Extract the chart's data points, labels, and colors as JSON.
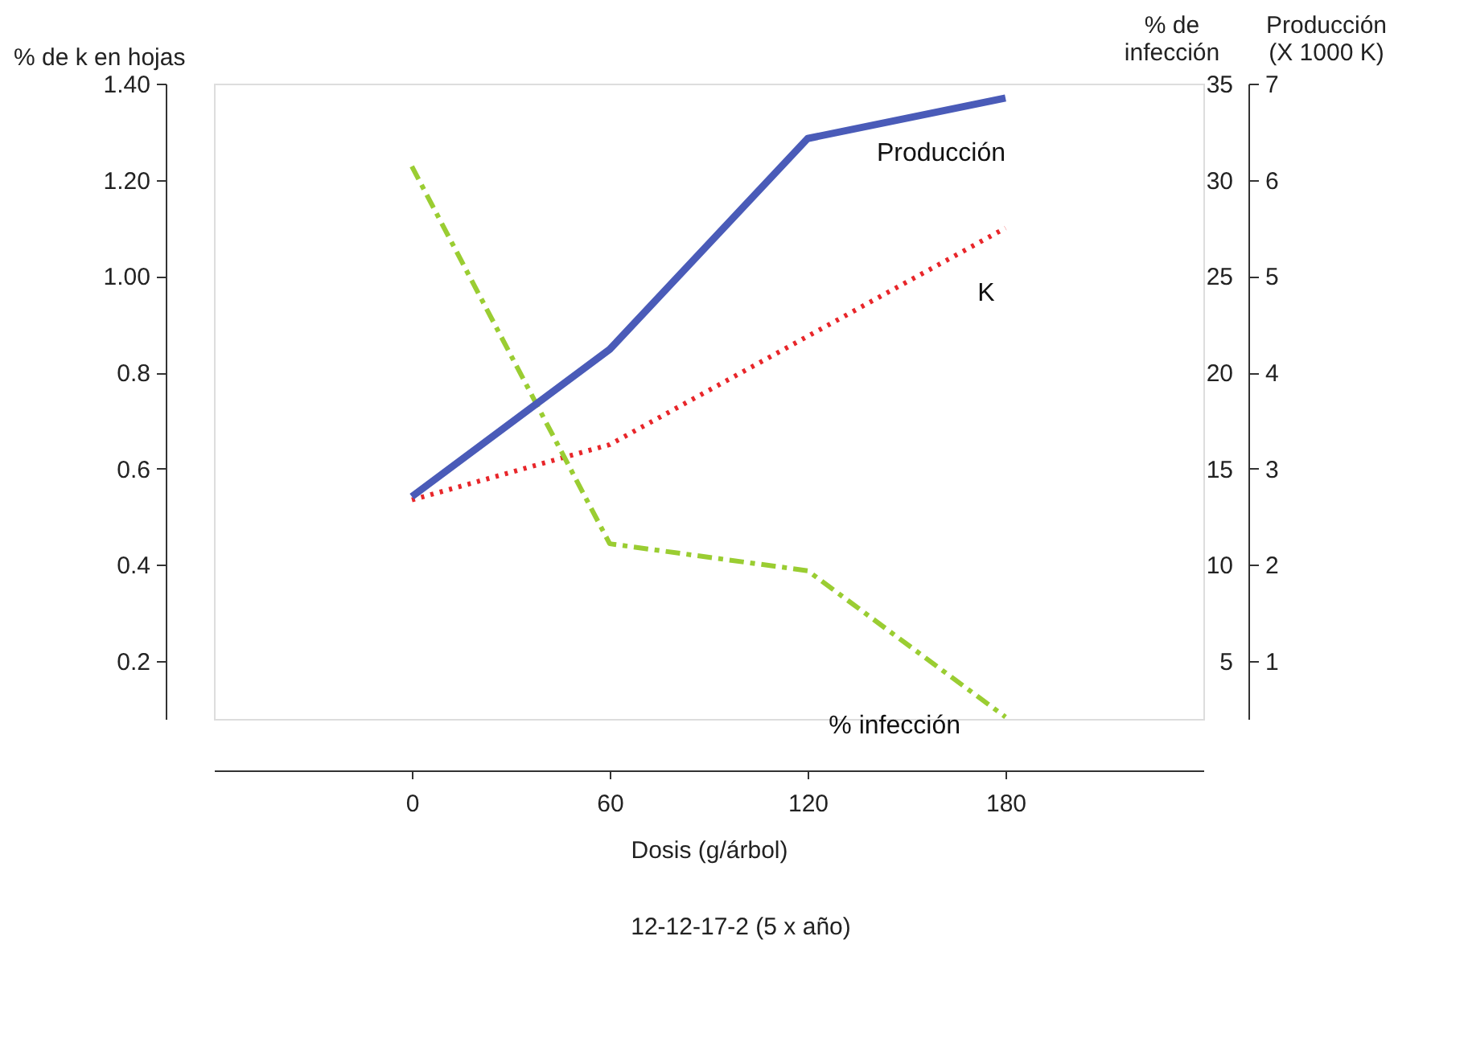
{
  "chart_data": {
    "type": "line",
    "xlabel": "Dosis (g/árbol)",
    "ylabel": "% de k en hojas",
    "y2label": "% de\ninfección",
    "y3label": "Producción\n(X 1000 K)",
    "x": [
      0,
      60,
      120,
      180
    ],
    "xlim": [
      -60,
      240
    ],
    "xticks": [
      0,
      60,
      120,
      180
    ],
    "ylim": [
      0.08,
      1.4
    ],
    "yticks": [
      0.2,
      0.4,
      0.6,
      0.8,
      {
        "value": 1.0,
        "label": "1.00"
      },
      {
        "value": 1.2,
        "label": "1.20"
      },
      {
        "value": 1.4,
        "label": "1.40"
      }
    ],
    "y2lim": [
      2,
      35
    ],
    "y2ticks": [
      5,
      10,
      15,
      20,
      25,
      30,
      35
    ],
    "y3lim": [
      0.4,
      7
    ],
    "y3ticks": [
      1,
      2,
      3,
      4,
      5,
      6,
      7
    ],
    "series": [
      {
        "name": "Producción",
        "color": "#4a5bb8",
        "axis": "y3",
        "line_style": "solid",
        "values": [
          2.71,
          4.24,
          6.43,
          6.85
        ]
      },
      {
        "name": "K",
        "color": "#e8262a",
        "axis": "y",
        "line_style": "dotted",
        "values": [
          0.535,
          0.65,
          0.875,
          1.1
        ]
      },
      {
        "name": "% infección",
        "color": "#9acd32",
        "axis": "y2",
        "line_style": "dashed",
        "values": [
          30.7,
          11.1,
          9.7,
          2.1
        ]
      }
    ],
    "annotations": [
      "12-12-17-2 (5 x año)"
    ],
    "grid": false,
    "legend": false,
    "marker": "none"
  }
}
